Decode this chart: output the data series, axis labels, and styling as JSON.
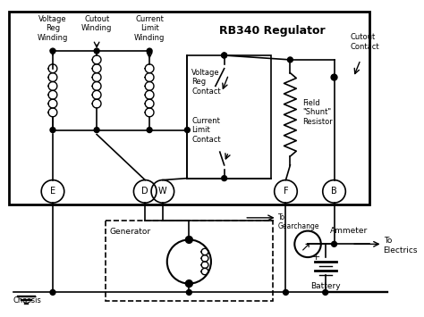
{
  "title": "RB340 Regulator",
  "bg_color": "#ffffff",
  "line_color": "#000000",
  "fig_width": 4.74,
  "fig_height": 3.55,
  "labels": {
    "voltage_reg_winding": "Voltage\nReg\nWinding",
    "cutout_winding": "Cutout\nWinding",
    "current_limit_winding": "Current\nLimit\nWinding",
    "voltage_reg_contact": "Voltage\nReg\nContact",
    "current_limit_contact": "Current\nLimit\nContact",
    "cutout_contact": "Cutout\nContact",
    "field_shunt_resistor": "Field\n\"Shunt\"\nResistor",
    "generator": "Generator",
    "ammeter": "Ammeter",
    "battery": "Battery",
    "chassis": "Chassis",
    "to_gearchange": "To\nGearchange",
    "to_electrics": "To\nElectrics"
  }
}
